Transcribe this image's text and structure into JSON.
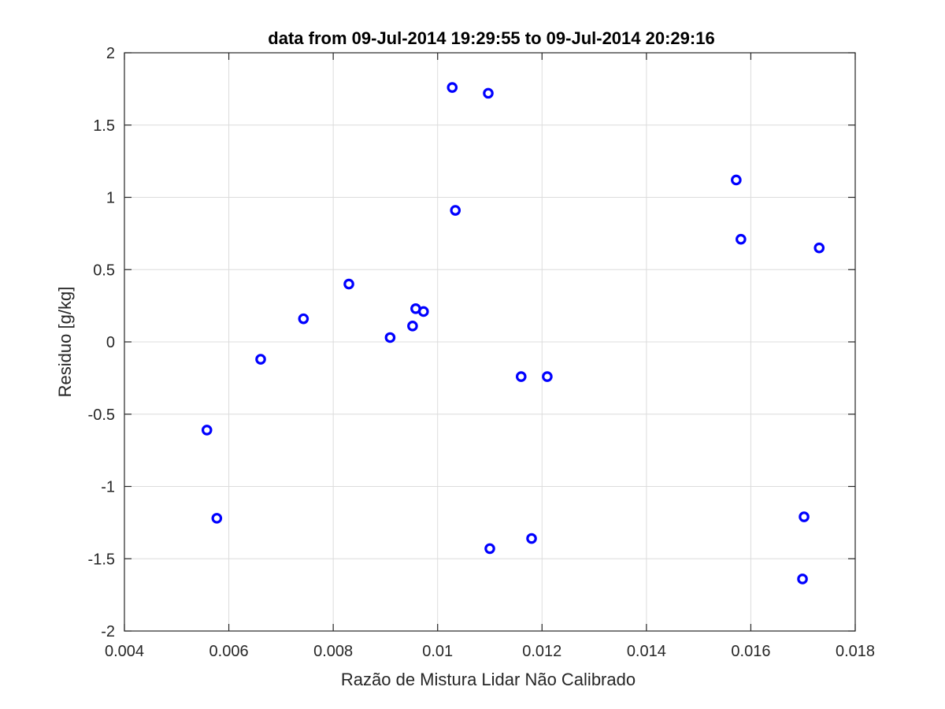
{
  "chart_data": {
    "type": "scatter",
    "title": "data from 09-Jul-2014 19:29:55 to 09-Jul-2014 20:29:16",
    "xlabel": "Razão de Mistura Lidar Não Calibrado",
    "ylabel": "Residuo [g/kg]",
    "xlim": [
      0.004,
      0.018
    ],
    "ylim": [
      -2,
      2
    ],
    "x_ticks": [
      0.004,
      0.006,
      0.008,
      0.01,
      0.012,
      0.014,
      0.016,
      0.018
    ],
    "x_tick_labels": [
      "0.004",
      "0.006",
      "0.008",
      "0.01",
      "0.012",
      "0.014",
      "0.016",
      "0.018"
    ],
    "y_ticks": [
      2,
      1.5,
      1,
      0.5,
      0,
      -0.5,
      -1,
      -1.5,
      -2
    ],
    "y_tick_labels": [
      "2",
      "1.5",
      "1",
      "0.5",
      "0",
      "-0.5",
      "-1",
      "-1.5",
      "-2"
    ],
    "grid": true,
    "marker": "circle",
    "marker_color": "#0000ff",
    "series": [
      {
        "x": [
          0.01028,
          0.01097,
          0.01034,
          0.01572,
          0.01581,
          0.01731,
          0.0083,
          0.00743,
          0.00958,
          0.00973,
          0.00952,
          0.00909,
          0.00661,
          0.0116,
          0.0121,
          0.00558,
          0.00577,
          0.011,
          0.0118,
          0.01702,
          0.01699
        ],
        "y": [
          1.76,
          1.72,
          0.91,
          1.12,
          0.71,
          0.65,
          0.4,
          0.16,
          0.23,
          0.21,
          0.11,
          0.03,
          -0.12,
          -0.24,
          -0.24,
          -0.61,
          -1.22,
          -1.43,
          -1.36,
          -1.21,
          -1.64
        ]
      }
    ]
  }
}
